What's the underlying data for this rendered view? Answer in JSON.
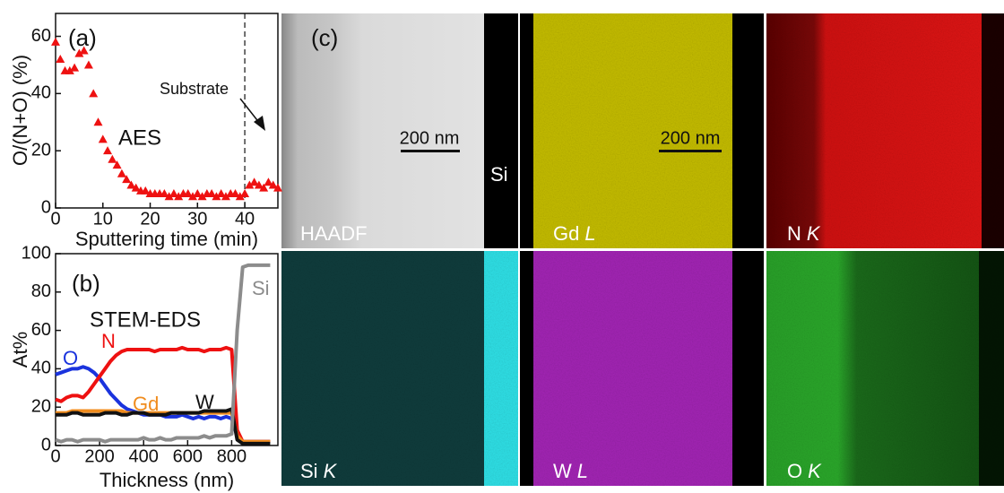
{
  "chart_data": [
    {
      "type": "scatter",
      "panel_label": "(a)",
      "annotation": "AES",
      "arrow_label": "Substrate",
      "vline": 40,
      "x_label": "Sputtering time (min)",
      "y_label": "O/(N+O) (%)",
      "color": "#ee1111",
      "marker": "triangle",
      "x": [
        0,
        1,
        2,
        3,
        4,
        5,
        6,
        7,
        8,
        9,
        10,
        11,
        12,
        13,
        14,
        15,
        16,
        17,
        18,
        19,
        20,
        21,
        22,
        23,
        24,
        25,
        26,
        27,
        28,
        29,
        30,
        31,
        32,
        33,
        34,
        35,
        36,
        37,
        38,
        39,
        40,
        41,
        42,
        43,
        44,
        45,
        46,
        47
      ],
      "values": [
        58,
        52,
        48,
        48,
        49,
        54,
        55,
        50,
        40,
        30,
        24,
        20,
        17,
        15,
        12,
        10,
        8,
        7,
        6,
        6,
        5,
        5,
        5,
        5,
        4,
        5,
        4,
        5,
        5,
        4,
        5,
        4,
        5,
        5,
        4,
        5,
        4,
        5,
        5,
        4,
        5,
        8,
        9,
        8,
        7,
        9,
        8,
        7
      ],
      "xlim": [
        0,
        47
      ],
      "ylim": [
        0,
        68
      ],
      "xticks": [
        0,
        10,
        20,
        30,
        40
      ],
      "yticks": [
        0,
        20,
        40,
        60
      ]
    },
    {
      "type": "line",
      "panel_label": "(b)",
      "annotation": "STEM-EDS",
      "x_label": "Thickness (nm)",
      "y_label": "At%",
      "x": [
        0,
        25,
        50,
        75,
        100,
        125,
        150,
        175,
        200,
        225,
        250,
        275,
        300,
        325,
        350,
        375,
        400,
        425,
        450,
        475,
        500,
        525,
        550,
        575,
        600,
        625,
        650,
        675,
        700,
        725,
        750,
        775,
        800,
        825,
        850,
        875,
        900,
        925,
        950,
        975
      ],
      "series": [
        {
          "name": "O",
          "color": "#1a33dd",
          "values": [
            37,
            38,
            39,
            40,
            40,
            41,
            40,
            38,
            35,
            31,
            27,
            24,
            21,
            19,
            18,
            17,
            16,
            16,
            16,
            16,
            15,
            15,
            15,
            16,
            15,
            14,
            15,
            14,
            15,
            15,
            14,
            15,
            14,
            5,
            2,
            2,
            2,
            2,
            2,
            2
          ]
        },
        {
          "name": "N",
          "color": "#ee1111",
          "values": [
            24,
            23,
            25,
            26,
            26,
            25,
            28,
            32,
            36,
            40,
            44,
            47,
            49,
            50,
            50,
            50,
            50,
            50,
            49,
            50,
            50,
            50,
            50,
            51,
            50,
            50,
            50,
            49,
            50,
            50,
            50,
            51,
            50,
            8,
            2,
            2,
            2,
            2,
            2,
            2
          ]
        },
        {
          "name": "Gd",
          "color": "#f08c1e",
          "values": [
            17,
            17,
            17,
            18,
            18,
            18,
            18,
            18,
            18,
            18,
            18,
            18,
            18,
            17,
            17,
            17,
            17,
            17,
            17,
            17,
            17,
            17,
            17,
            17,
            17,
            17,
            17,
            17,
            17,
            17,
            17,
            17,
            17,
            5,
            2,
            2,
            2,
            2,
            2,
            2
          ]
        },
        {
          "name": "W",
          "color": "#111111",
          "values": [
            16,
            16,
            16,
            17,
            17,
            16,
            16,
            16,
            16,
            17,
            17,
            17,
            16,
            16,
            17,
            17,
            17,
            16,
            16,
            16,
            16,
            17,
            17,
            17,
            17,
            17,
            17,
            18,
            18,
            18,
            18,
            18,
            19,
            3,
            1,
            1,
            1,
            1,
            1,
            1
          ]
        },
        {
          "name": "Si",
          "color": "#8c8c8c",
          "values": [
            3,
            2,
            3,
            3,
            2,
            3,
            3,
            3,
            3,
            2,
            3,
            3,
            3,
            3,
            3,
            3,
            4,
            3,
            3,
            4,
            3,
            3,
            4,
            4,
            4,
            4,
            4,
            5,
            4,
            5,
            5,
            5,
            6,
            60,
            93,
            94,
            94,
            94,
            94,
            94
          ]
        }
      ],
      "xlim": [
        0,
        1010
      ],
      "ylim": [
        0,
        100
      ],
      "xticks": [
        0,
        200,
        400,
        600,
        800
      ],
      "yticks": [
        0,
        20,
        40,
        60,
        80,
        100
      ]
    }
  ],
  "micrographs": {
    "panel_label": "(c)",
    "haadf": "HAADF",
    "substrate": "Si",
    "scale_bars": [
      "200 nm",
      "200 nm"
    ],
    "maps": [
      {
        "element": "Gd",
        "line": "L"
      },
      {
        "element": "N",
        "line": "K"
      },
      {
        "element": "Si",
        "line": "K"
      },
      {
        "element": "W",
        "line": "L"
      },
      {
        "element": "O",
        "line": "K"
      }
    ]
  }
}
